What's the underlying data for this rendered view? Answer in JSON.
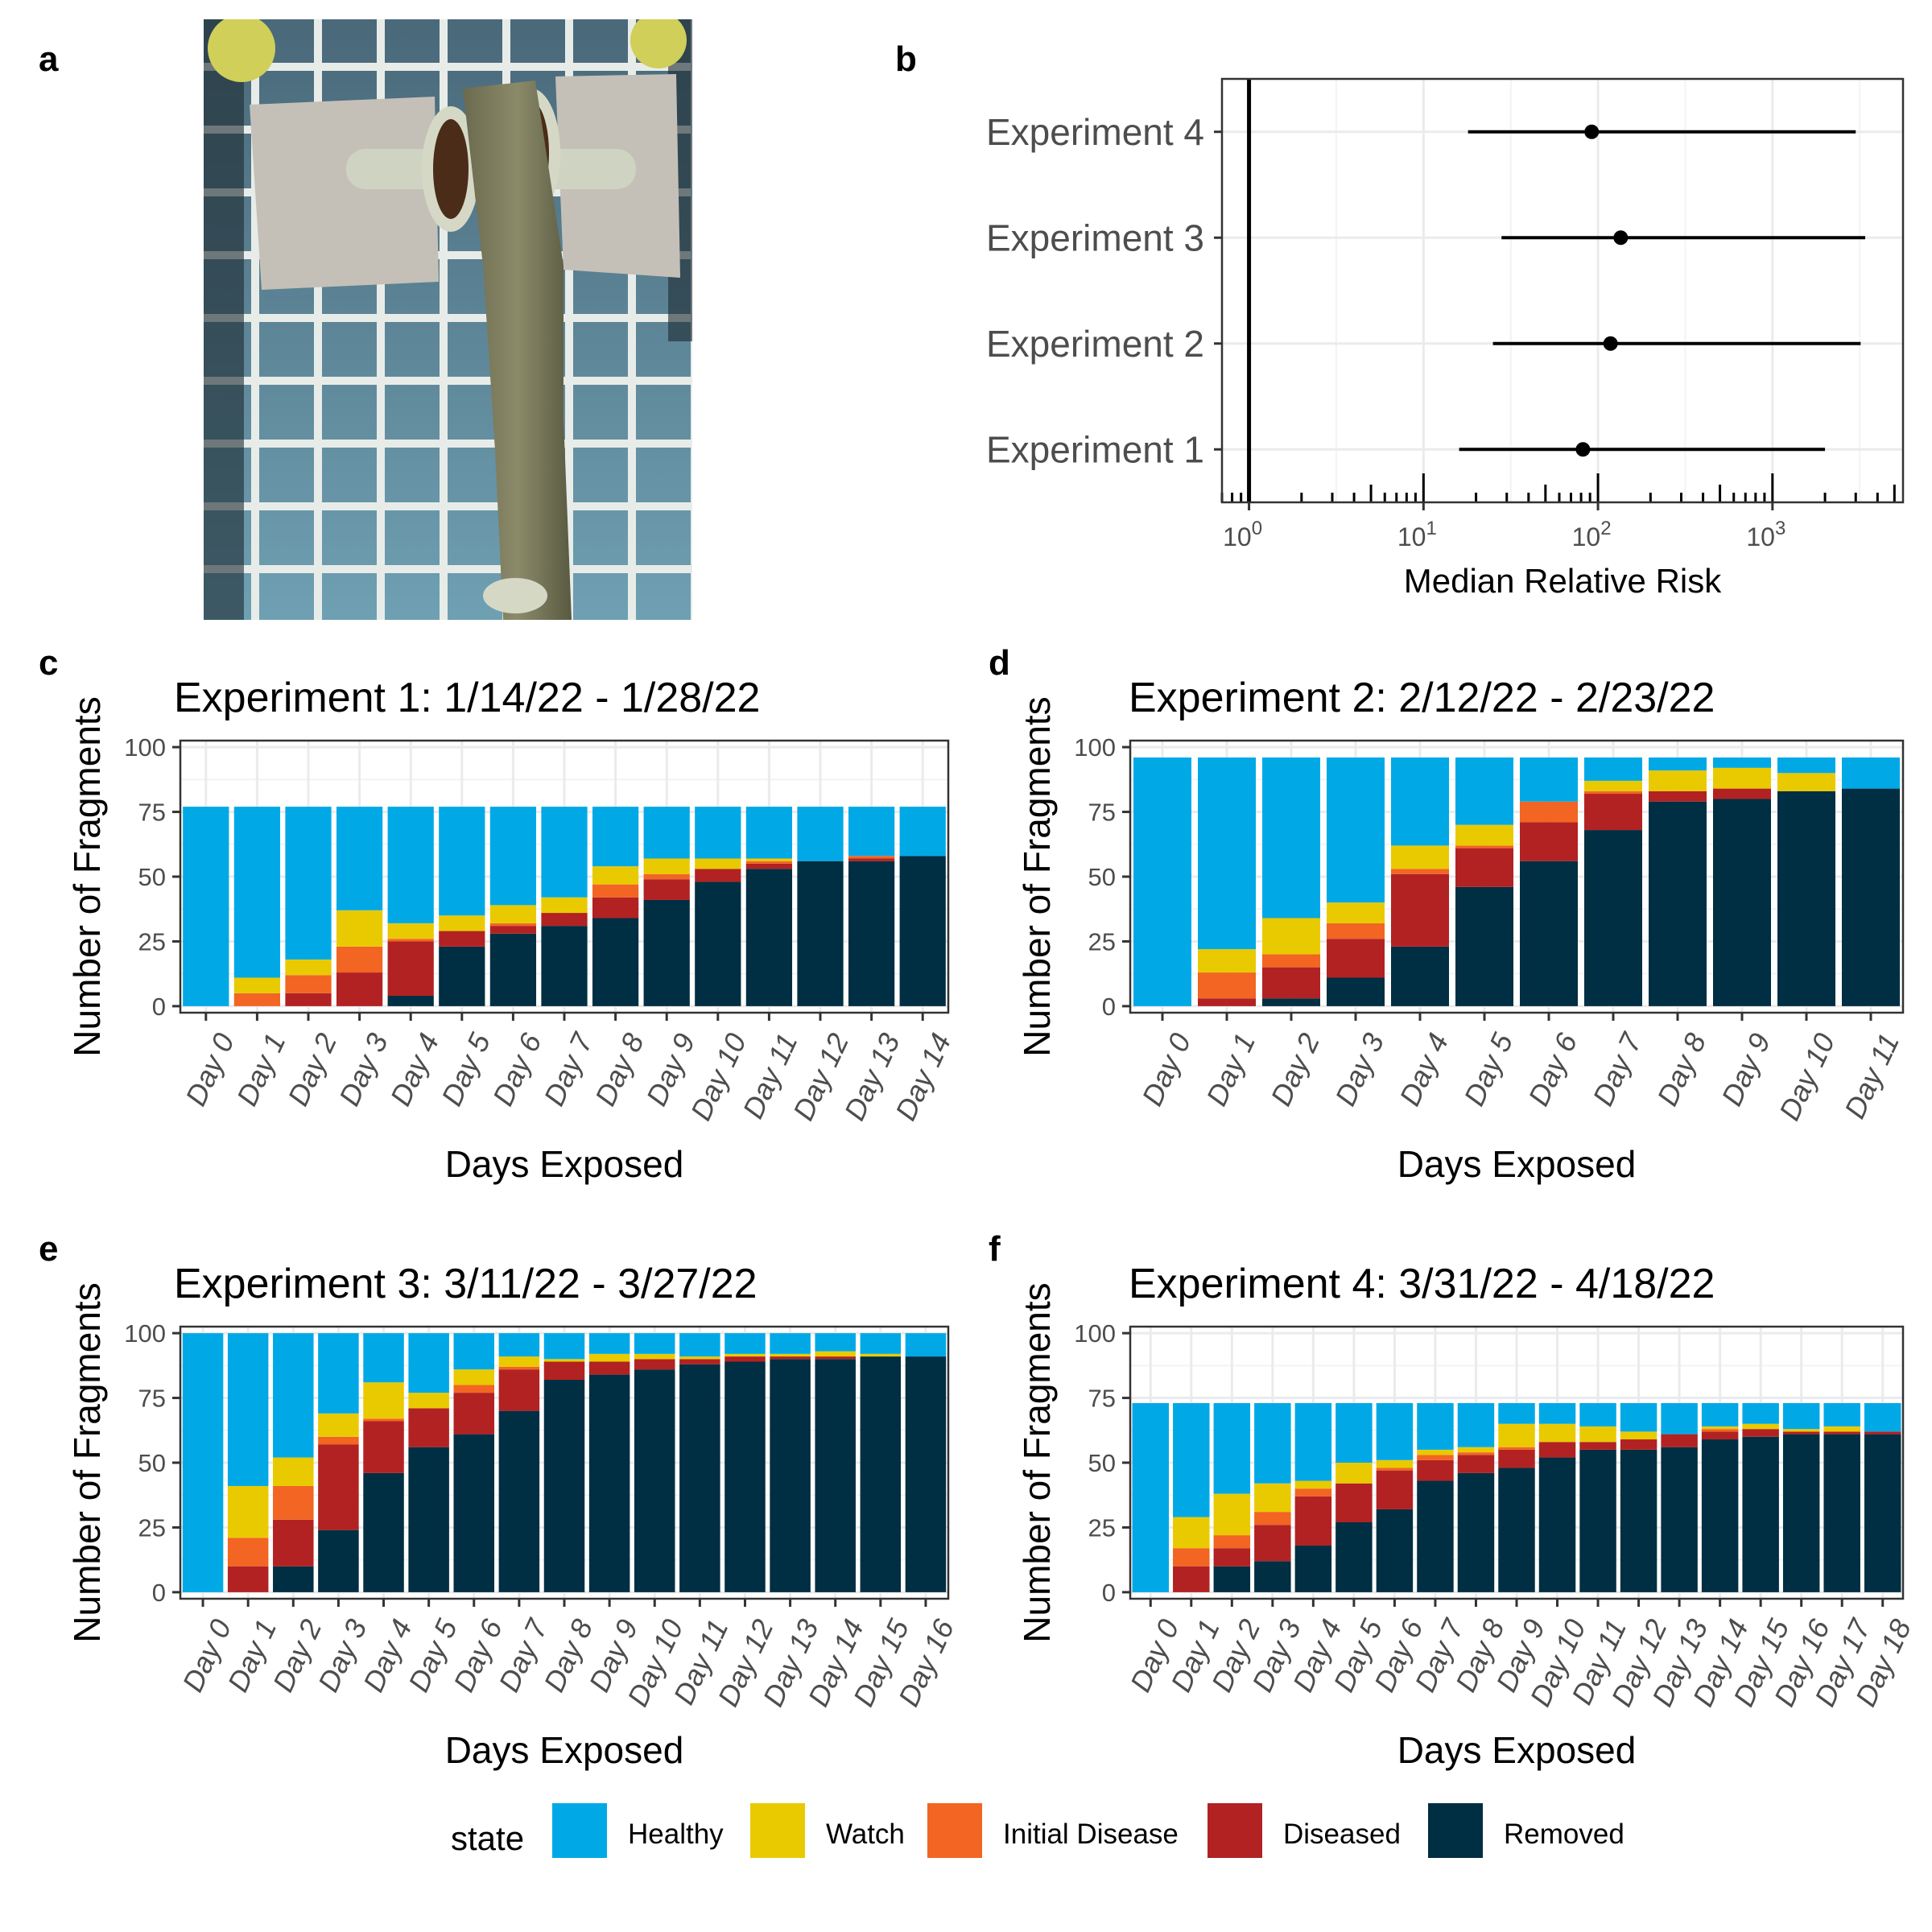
{
  "panel_labels": {
    "a": "a",
    "b": "b",
    "c": "c",
    "d": "d",
    "e": "e",
    "f": "f"
  },
  "colors": {
    "Healthy": "#00A9E6",
    "Watch": "#E9CA00",
    "Initial Disease": "#F26522",
    "Diseased": "#B22222",
    "Removed": "#002E42"
  },
  "legend": {
    "title": "state",
    "items": [
      "Healthy",
      "Watch",
      "Initial Disease",
      "Diseased",
      "Removed"
    ]
  },
  "photo": {
    "description_icon": "coral-fragment-photo"
  },
  "chart_data": [
    {
      "id": "b",
      "type": "scatter",
      "xlabel": "Median Relative Risk",
      "xscale": "log10",
      "xlim": [
        0.7,
        5600
      ],
      "x_tick_labels": [
        "10^0",
        "10^1",
        "10^2",
        "10^3"
      ],
      "x_ticks": [
        1,
        10,
        100,
        1000
      ],
      "reference_line": 1,
      "grid": true,
      "series": [
        {
          "label": "Experiment 4",
          "median": 92,
          "low": 18,
          "high": 3000
        },
        {
          "label": "Experiment 3",
          "median": 135,
          "low": 28,
          "high": 3400
        },
        {
          "label": "Experiment 2",
          "median": 118,
          "low": 25,
          "high": 3200
        },
        {
          "label": "Experiment 1",
          "median": 82,
          "low": 16,
          "high": 2000
        }
      ]
    },
    {
      "id": "c",
      "type": "bar",
      "stacked": true,
      "title": "Experiment 1: 1/14/22 - 1/28/22",
      "xlabel": "Days Exposed",
      "ylabel": "Number of Fragments",
      "ylim": [
        0,
        100
      ],
      "yticks": [
        0,
        25,
        50,
        75,
        100
      ],
      "categories": [
        "Day 0",
        "Day 1",
        "Day 2",
        "Day 3",
        "Day 4",
        "Day 5",
        "Day 6",
        "Day 7",
        "Day 8",
        "Day 9",
        "Day 10",
        "Day 11",
        "Day 12",
        "Day 13",
        "Day 14"
      ],
      "series": [
        {
          "name": "Removed",
          "values": [
            0,
            0,
            0,
            0,
            4,
            23,
            28,
            31,
            34,
            41,
            48,
            53,
            56,
            56,
            58
          ]
        },
        {
          "name": "Diseased",
          "values": [
            0,
            0,
            5,
            13,
            21,
            6,
            3,
            5,
            8,
            8,
            5,
            2,
            0,
            1,
            0
          ]
        },
        {
          "name": "Initial Disease",
          "values": [
            0,
            5,
            7,
            10,
            1,
            0,
            1,
            0,
            5,
            2,
            0,
            1,
            0,
            1,
            0
          ]
        },
        {
          "name": "Watch",
          "values": [
            0,
            6,
            6,
            14,
            6,
            6,
            7,
            6,
            7,
            6,
            4,
            1,
            0,
            0,
            0
          ]
        },
        {
          "name": "Healthy",
          "values": [
            77,
            66,
            59,
            40,
            45,
            42,
            38,
            35,
            23,
            20,
            20,
            20,
            21,
            19,
            19
          ]
        }
      ]
    },
    {
      "id": "d",
      "type": "bar",
      "stacked": true,
      "title": "Experiment 2: 2/12/22 - 2/23/22",
      "xlabel": "Days Exposed",
      "ylabel": "Number of Fragments",
      "ylim": [
        0,
        100
      ],
      "yticks": [
        0,
        25,
        50,
        75,
        100
      ],
      "categories": [
        "Day 0",
        "Day 1",
        "Day 2",
        "Day 3",
        "Day 4",
        "Day 5",
        "Day 6",
        "Day 7",
        "Day 8",
        "Day 9",
        "Day 10",
        "Day 11"
      ],
      "series": [
        {
          "name": "Removed",
          "values": [
            0,
            0,
            3,
            11,
            23,
            46,
            56,
            68,
            79,
            80,
            83,
            84
          ]
        },
        {
          "name": "Diseased",
          "values": [
            0,
            3,
            12,
            15,
            28,
            15,
            15,
            14,
            4,
            4,
            0,
            0
          ]
        },
        {
          "name": "Initial Disease",
          "values": [
            0,
            10,
            5,
            6,
            2,
            1,
            8,
            1,
            0,
            0,
            0,
            0
          ]
        },
        {
          "name": "Watch",
          "values": [
            0,
            9,
            14,
            8,
            9,
            8,
            0,
            4,
            8,
            8,
            7,
            0
          ]
        },
        {
          "name": "Healthy",
          "values": [
            96,
            74,
            62,
            56,
            34,
            26,
            17,
            9,
            5,
            4,
            6,
            12
          ]
        }
      ]
    },
    {
      "id": "e",
      "type": "bar",
      "stacked": true,
      "title": "Experiment 3: 3/11/22 - 3/27/22",
      "xlabel": "Days Exposed",
      "ylabel": "Number of Fragments",
      "ylim": [
        0,
        100
      ],
      "yticks": [
        0,
        25,
        50,
        75,
        100
      ],
      "categories": [
        "Day 0",
        "Day 1",
        "Day 2",
        "Day 3",
        "Day 4",
        "Day 5",
        "Day 6",
        "Day 7",
        "Day 8",
        "Day 9",
        "Day 10",
        "Day 11",
        "Day 12",
        "Day 13",
        "Day 14",
        "Day 15",
        "Day 16"
      ],
      "series": [
        {
          "name": "Removed",
          "values": [
            0,
            0,
            10,
            24,
            46,
            56,
            61,
            70,
            82,
            84,
            86,
            88,
            89,
            90,
            90,
            91,
            91
          ]
        },
        {
          "name": "Diseased",
          "values": [
            0,
            10,
            18,
            33,
            20,
            15,
            16,
            16,
            7,
            5,
            4,
            2,
            2,
            1,
            1,
            0,
            0
          ]
        },
        {
          "name": "Initial Disease",
          "values": [
            0,
            11,
            13,
            3,
            1,
            0,
            3,
            1,
            0,
            0,
            0,
            0,
            0,
            0,
            0,
            0,
            0
          ]
        },
        {
          "name": "Watch",
          "values": [
            0,
            20,
            11,
            9,
            14,
            6,
            6,
            4,
            1,
            3,
            2,
            1,
            1,
            1,
            2,
            1,
            0
          ]
        },
        {
          "name": "Healthy",
          "values": [
            100,
            59,
            48,
            31,
            19,
            23,
            14,
            9,
            10,
            8,
            8,
            9,
            8,
            8,
            7,
            8,
            9
          ]
        }
      ]
    },
    {
      "id": "f",
      "type": "bar",
      "stacked": true,
      "title": "Experiment 4: 3/31/22 - 4/18/22",
      "xlabel": "Days Exposed",
      "ylabel": "Number of Fragments",
      "ylim": [
        0,
        100
      ],
      "yticks": [
        0,
        25,
        50,
        75,
        100
      ],
      "categories": [
        "Day 0",
        "Day 1",
        "Day 2",
        "Day 3",
        "Day 4",
        "Day 5",
        "Day 6",
        "Day 7",
        "Day 8",
        "Day 9",
        "Day 10",
        "Day 11",
        "Day 12",
        "Day 13",
        "Day 14",
        "Day 15",
        "Day 16",
        "Day 17",
        "Day 18"
      ],
      "series": [
        {
          "name": "Removed",
          "values": [
            0,
            0,
            10,
            12,
            18,
            27,
            32,
            43,
            46,
            48,
            52,
            55,
            55,
            56,
            59,
            60,
            61,
            61,
            61
          ]
        },
        {
          "name": "Diseased",
          "values": [
            0,
            10,
            7,
            14,
            19,
            15,
            15,
            8,
            7,
            7,
            6,
            3,
            4,
            5,
            3,
            3,
            1,
            1,
            1
          ]
        },
        {
          "name": "Initial Disease",
          "values": [
            0,
            7,
            5,
            5,
            3,
            0,
            1,
            2,
            1,
            1,
            0,
            0,
            0,
            0,
            1,
            0,
            0,
            0,
            0
          ]
        },
        {
          "name": "Watch",
          "values": [
            0,
            12,
            16,
            11,
            3,
            8,
            3,
            2,
            2,
            9,
            7,
            6,
            3,
            0,
            1,
            2,
            1,
            2,
            0
          ]
        },
        {
          "name": "Healthy",
          "values": [
            73,
            44,
            35,
            31,
            30,
            23,
            22,
            18,
            17,
            8,
            8,
            9,
            11,
            12,
            9,
            8,
            10,
            9,
            11
          ]
        }
      ]
    }
  ]
}
